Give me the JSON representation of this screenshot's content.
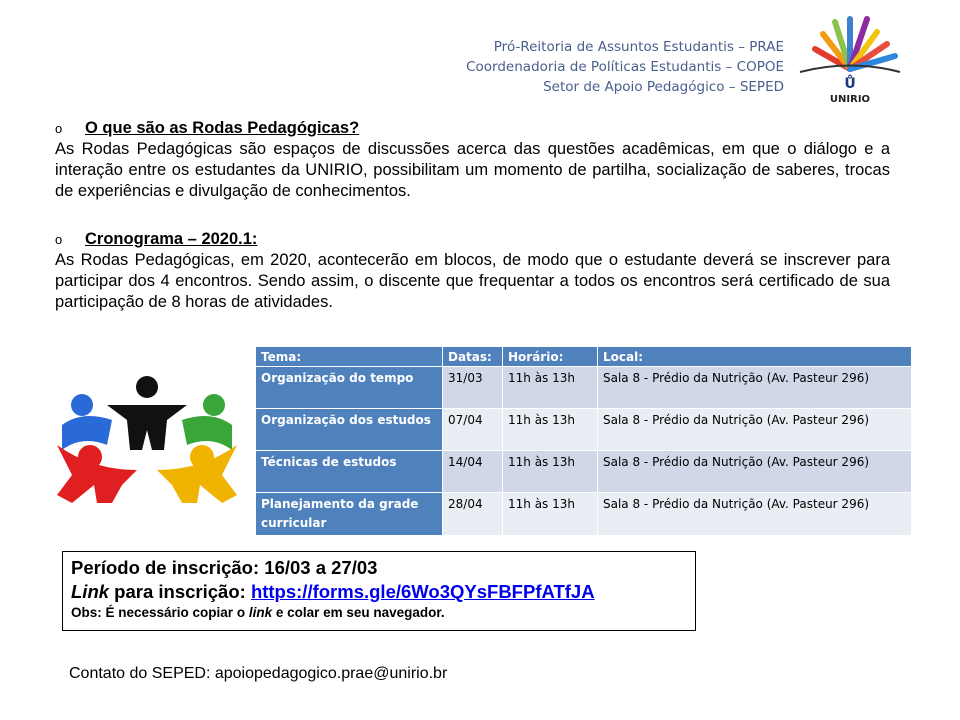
{
  "header": {
    "lines": [
      "Pró-Reitoria de Assuntos Estudantis – PRAE",
      "Coordenadoria de Políticas Estudantis – COPOE",
      "Setor de Apoio  Pedagógico – SEPED"
    ],
    "logo_text": "UNIRIO"
  },
  "section1": {
    "bullet": "o",
    "title": "O que são as Rodas Pedagógicas?",
    "body": "As Rodas Pedagógicas são espaços de discussões acerca das questões acadêmicas, em que o diálogo e a interação entre os estudantes da UNIRIO, possibilitam um momento de partilha, socialização de saberes, trocas de experiências e divulgação de conhecimentos."
  },
  "section2": {
    "bullet": "o",
    "title": "Cronograma – 2020.1:",
    "body": "As Rodas Pedagógicas, em 2020, acontecerão em blocos, de modo que o estudante deverá se inscrever para participar dos 4 encontros. Sendo assim, o discente que frequentar a todos os encontros será certificado de sua participação de 8 horas de atividades."
  },
  "table": {
    "headers": [
      "Tema:",
      "Datas:",
      "Horário:",
      "Local:"
    ],
    "rows": [
      [
        "Organização do tempo",
        "31/03",
        "11h às 13h",
        "Sala 8 - Prédio da Nutrição (Av. Pasteur 296)"
      ],
      [
        "Organização dos estudos",
        "07/04",
        "11h às 13h",
        "Sala 8 - Prédio da Nutrição (Av. Pasteur 296)"
      ],
      [
        "Técnicas de estudos",
        "14/04",
        "11h às 13h",
        "Sala 8 - Prédio da Nutrição (Av. Pasteur 296)"
      ],
      [
        "Planejamento da grade curricular",
        "28/04",
        "11h às 13h",
        "Sala 8 - Prédio da Nutrição (Av. Pasteur 296)"
      ]
    ]
  },
  "registration": {
    "period_label": "Período de inscrição:",
    "period": "16/03 a 27/03",
    "link_label_em": "Link",
    "link_label_rest": " para inscrição:",
    "link": "https://forms.gle/6Wo3QYsFBFPfATfJA",
    "obs_pre": "Obs: É necessário copiar o ",
    "obs_em": "link",
    "obs_post": " e colar em seu navegador."
  },
  "contact": "Contato do SEPED: apoiopedagogico.prae@unirio.br",
  "colors": {
    "table_header": "#4f81bd",
    "row_dark": "#d0d8e8",
    "row_light": "#e9edf4",
    "header_text": "#4a5e8c"
  }
}
